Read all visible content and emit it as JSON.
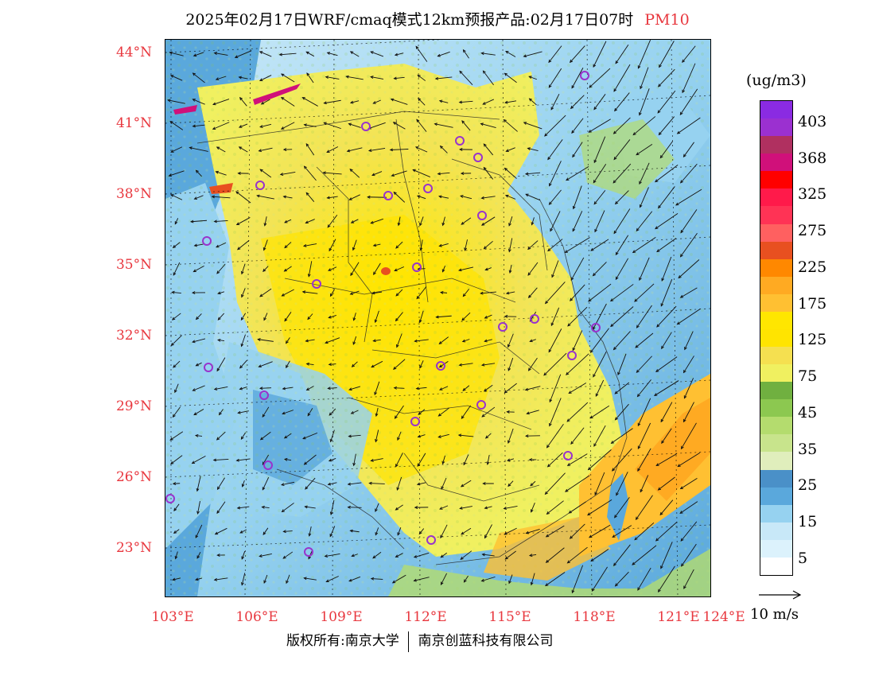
{
  "header": {
    "title": "2025年02月17日WRF/cmaq模式12km预报产品:02月17日07时",
    "pollutant": "PM10"
  },
  "map": {
    "lat_labels": [
      "44°N",
      "41°N",
      "38°N",
      "35°N",
      "32°N",
      "29°N",
      "26°N",
      "23°N"
    ],
    "lon_labels": [
      "103°E",
      "106°E",
      "109°E",
      "112°E",
      "115°E",
      "118°E",
      "121°E",
      "124°E"
    ]
  },
  "colorbar": {
    "unit": "(ug/m3)",
    "labels": [
      "403",
      "368",
      "325",
      "275",
      "225",
      "175",
      "125",
      "75",
      "45",
      "35",
      "25",
      "15",
      "5"
    ],
    "colors": [
      "#8a2be2",
      "#9b30d0",
      "#b03060",
      "#d0107a",
      "#ff0000",
      "#ff1a4a",
      "#ff3355",
      "#ff6060",
      "#e85020",
      "#ff8800",
      "#ffaa22",
      "#ffc032",
      "#ffe600",
      "#ffe400",
      "#f5e050",
      "#f0f060",
      "#70b040",
      "#8cc850",
      "#b4dc6e",
      "#c8e48c",
      "#e0eebc",
      "#4a90c8",
      "#5aa8dc",
      "#96d2f0",
      "#c8e8f8",
      "#dcf2fc",
      "#ffffff"
    ],
    "wind_scale_label": "10 m/s"
  },
  "footer": {
    "copyright": "版权所有:南京大学",
    "company": "南京创蓝科技有限公司"
  },
  "colors": {
    "axis_label": "#e8373e",
    "city_marker": "#9933cc"
  }
}
